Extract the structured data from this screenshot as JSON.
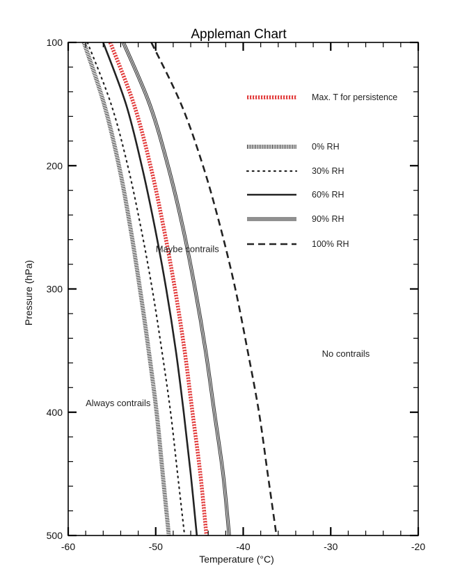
{
  "chart_data": {
    "type": "line",
    "title": "Appleman Chart",
    "xlabel": "Temperature (°C)",
    "ylabel": "Pressure (hPa)",
    "xlim": [
      -60,
      -20
    ],
    "ylim": [
      500,
      100
    ],
    "x_ticks": [
      -60,
      -50,
      -40,
      -30,
      -20
    ],
    "y_ticks": [
      100,
      200,
      300,
      400,
      500
    ],
    "grid": false,
    "legend_position": "top-right",
    "region_labels": [
      {
        "text": "Always contrails",
        "x": -58,
        "p": 395
      },
      {
        "text": "Maybe contrails",
        "x": -50,
        "p": 270
      },
      {
        "text": "No contrails",
        "x": -31,
        "p": 355
      }
    ],
    "series": [
      {
        "name": "Max. T for persistence",
        "style": "red-diamonds",
        "color": "#e23a3a",
        "points": [
          [
            -55.2,
            100
          ],
          [
            -52.5,
            150
          ],
          [
            -50.6,
            200
          ],
          [
            -49.1,
            250
          ],
          [
            -47.8,
            300
          ],
          [
            -46.7,
            350
          ],
          [
            -45.8,
            400
          ],
          [
            -44.9,
            450
          ],
          [
            -44.2,
            500
          ]
        ]
      },
      {
        "name": "0% RH",
        "style": "hatched",
        "color": "#222222",
        "points": [
          [
            -58.2,
            100
          ],
          [
            -55.9,
            150
          ],
          [
            -54.2,
            200
          ],
          [
            -52.9,
            250
          ],
          [
            -51.8,
            300
          ],
          [
            -50.8,
            350
          ],
          [
            -49.9,
            400
          ],
          [
            -49.2,
            450
          ],
          [
            -48.5,
            500
          ]
        ]
      },
      {
        "name": "30% RH",
        "style": "dotted",
        "color": "#222222",
        "points": [
          [
            -57.8,
            100
          ],
          [
            -55.1,
            150
          ],
          [
            -53.2,
            200
          ],
          [
            -51.7,
            250
          ],
          [
            -50.4,
            300
          ],
          [
            -49.3,
            350
          ],
          [
            -48.3,
            400
          ],
          [
            -47.5,
            450
          ],
          [
            -46.7,
            500
          ]
        ]
      },
      {
        "name": "60% RH",
        "style": "solid",
        "color": "#222222",
        "points": [
          [
            -56.0,
            100
          ],
          [
            -53.4,
            150
          ],
          [
            -51.6,
            200
          ],
          [
            -50.1,
            250
          ],
          [
            -48.8,
            300
          ],
          [
            -47.7,
            350
          ],
          [
            -46.8,
            400
          ],
          [
            -46.0,
            450
          ],
          [
            -45.3,
            500
          ]
        ]
      },
      {
        "name": "90% RH",
        "style": "triple-line",
        "color": "#222222",
        "points": [
          [
            -53.7,
            100
          ],
          [
            -50.7,
            150
          ],
          [
            -48.6,
            200
          ],
          [
            -46.9,
            250
          ],
          [
            -45.5,
            300
          ],
          [
            -44.3,
            350
          ],
          [
            -43.3,
            400
          ],
          [
            -42.3,
            450
          ],
          [
            -41.6,
            500
          ]
        ]
      },
      {
        "name": "100% RH",
        "style": "dashed",
        "color": "#222222",
        "points": [
          [
            -50.5,
            100
          ],
          [
            -47.1,
            150
          ],
          [
            -44.6,
            200
          ],
          [
            -42.6,
            250
          ],
          [
            -40.9,
            300
          ],
          [
            -39.5,
            350
          ],
          [
            -38.2,
            400
          ],
          [
            -37.2,
            450
          ],
          [
            -36.2,
            500
          ]
        ]
      }
    ]
  }
}
